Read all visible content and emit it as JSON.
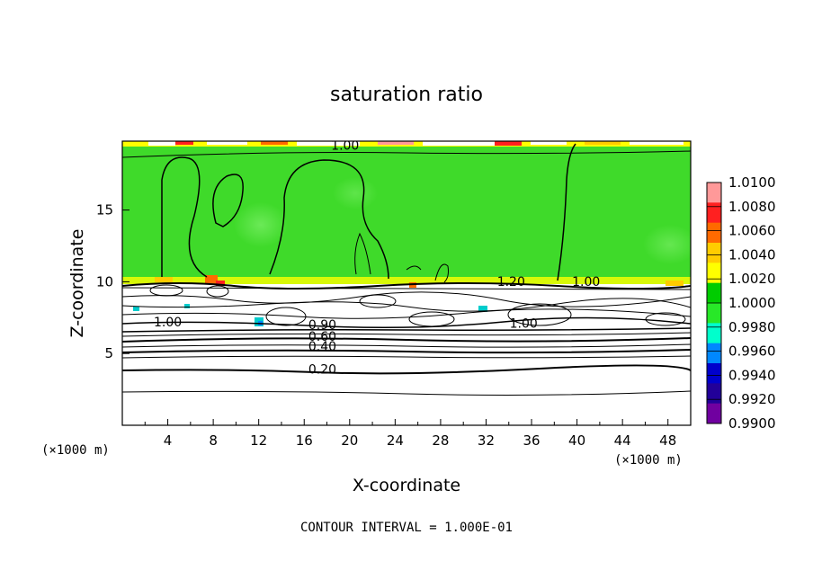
{
  "chart_data": {
    "type": "heatmap",
    "title": "saturation ratio",
    "xlabel": "X-coordinate",
    "ylabel": "Z-coordinate",
    "x_unit": "(×1000 m)",
    "y_unit": "(×1000 m)",
    "xlim": [
      0,
      50
    ],
    "ylim": [
      0,
      19.8
    ],
    "x_ticks": [
      4,
      8,
      12,
      16,
      20,
      24,
      28,
      32,
      36,
      40,
      44,
      48
    ],
    "y_ticks": [
      5,
      10,
      15
    ],
    "footer": "CONTOUR INTERVAL = 1.000E-01",
    "colorbar": {
      "levels": [
        "1.0100",
        "1.0080",
        "1.0060",
        "1.0040",
        "1.0020",
        "1.0000",
        "0.9980",
        "0.9960",
        "0.9940",
        "0.9920",
        "0.9900"
      ],
      "colors": [
        "#ff9999",
        "#ff2020",
        "#ff6a00",
        "#ffcc00",
        "#ffff00",
        "#00cc00",
        "#28e828",
        "#00ffcc",
        "#0088ff",
        "#0000cc",
        "#220099",
        "#7000a0"
      ]
    },
    "contour_labels": [
      {
        "text": "1.00",
        "x": 19.6,
        "z": 19.2
      },
      {
        "text": "1.20",
        "x": 34.2,
        "z": 9.7
      },
      {
        "text": "1.00",
        "x": 40.8,
        "z": 9.7
      },
      {
        "text": "1.00",
        "x": 4.0,
        "z": 6.9
      },
      {
        "text": "1.00",
        "x": 35.3,
        "z": 6.8
      },
      {
        "text": "0.90",
        "x": 17.6,
        "z": 6.7
      },
      {
        "text": "0.60",
        "x": 17.6,
        "z": 5.9
      },
      {
        "text": "0.40",
        "x": 17.6,
        "z": 5.2
      },
      {
        "text": "0.20",
        "x": 17.6,
        "z": 3.6
      }
    ]
  }
}
